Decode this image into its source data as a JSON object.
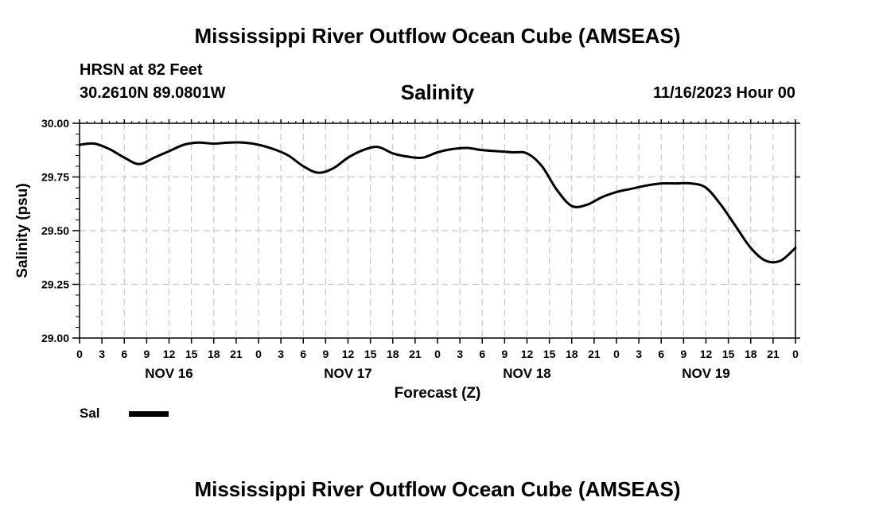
{
  "header": {
    "title": "Mississippi River Outflow Ocean Cube (AMSEAS)",
    "station": "HRSN at 82 Feet",
    "coords": "30.2610N  89.0801W",
    "variable": "Salinity",
    "run_time": "11/16/2023 Hour 00"
  },
  "footer": {
    "title": "Mississippi River Outflow Ocean Cube (AMSEAS)"
  },
  "chart_data": {
    "type": "line",
    "title": "Salinity",
    "xlabel": "Forecast (Z)",
    "ylabel": "Salinity (psu)",
    "ylim": [
      29.0,
      30.0
    ],
    "xlim_hours": [
      0,
      96
    ],
    "y_ticks": [
      "29.00",
      "29.25",
      "29.50",
      "29.75",
      "30.00"
    ],
    "x_tick_labels": [
      "0",
      "3",
      "6",
      "9",
      "12",
      "15",
      "18",
      "21",
      "0",
      "3",
      "6",
      "9",
      "12",
      "15",
      "18",
      "21",
      "0",
      "3",
      "6",
      "9",
      "12",
      "15",
      "18",
      "21",
      "0",
      "3",
      "6",
      "9",
      "12",
      "15",
      "18",
      "21",
      "0"
    ],
    "day_labels": [
      "NOV 16",
      "NOV 17",
      "NOV 18",
      "NOV 19"
    ],
    "grid": true,
    "legend": [
      {
        "label": "Sal",
        "color": "#000000"
      }
    ],
    "series": [
      {
        "name": "Sal",
        "x": [
          0,
          2,
          4,
          6,
          8,
          10,
          12,
          14,
          16,
          18,
          20,
          22,
          24,
          26,
          28,
          30,
          32,
          34,
          36,
          38,
          40,
          42,
          44,
          46,
          48,
          50,
          52,
          54,
          56,
          58,
          60,
          62,
          64,
          66,
          68,
          70,
          72,
          74,
          76,
          78,
          80,
          82,
          84,
          86,
          88,
          90,
          92,
          94,
          96
        ],
        "values": [
          29.9,
          29.905,
          29.88,
          29.84,
          29.81,
          29.84,
          29.87,
          29.9,
          29.91,
          29.905,
          29.91,
          29.91,
          29.9,
          29.88,
          29.85,
          29.8,
          29.77,
          29.79,
          29.84,
          29.875,
          29.89,
          29.86,
          29.845,
          29.84,
          29.865,
          29.88,
          29.885,
          29.875,
          29.87,
          29.865,
          29.86,
          29.8,
          29.69,
          29.615,
          29.62,
          29.655,
          29.68,
          29.695,
          29.71,
          29.72,
          29.72,
          29.72,
          29.7,
          29.62,
          29.52,
          29.42,
          29.36,
          29.36,
          29.42
        ]
      }
    ]
  }
}
